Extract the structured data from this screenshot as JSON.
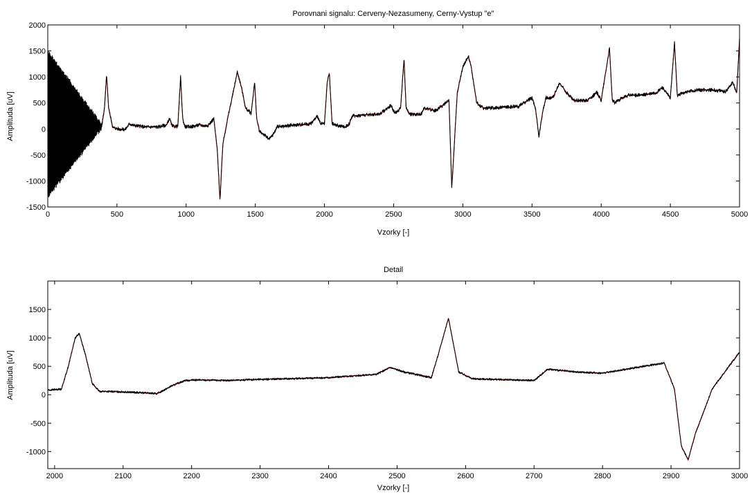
{
  "chart_data": [
    {
      "type": "line",
      "title": "Porovnani signalu: Cerveny-Nezasumeny, Cerny-Vystup \"e\"",
      "xlabel": "Vzorky [-]",
      "ylabel": "Amplituda [uV]",
      "xlim": [
        0,
        5000
      ],
      "ylim": [
        -1500,
        2000
      ],
      "xticks": [
        0,
        500,
        1000,
        1500,
        2000,
        2500,
        3000,
        3500,
        4000,
        4500,
        5000
      ],
      "yticks": [
        -1500,
        -1000,
        -500,
        0,
        500,
        1000,
        1500,
        2000
      ],
      "grid": false,
      "series": [
        {
          "color": "#cc0000",
          "x": [
            0,
            80,
            160,
            240,
            330,
            390,
            410,
            425,
            440,
            470,
            510,
            560,
            590,
            620,
            700,
            800,
            860,
            880,
            900,
            940,
            960,
            975,
            990,
            1010,
            1050,
            1100,
            1130,
            1160,
            1200,
            1225,
            1245,
            1265,
            1300,
            1340,
            1370,
            1400,
            1430,
            1470,
            1495,
            1510,
            1530,
            1560,
            1600,
            1630,
            1660,
            1700,
            1800,
            1900,
            1950,
            1970,
            2000,
            2020,
            2035,
            2055,
            2100,
            2150,
            2180,
            2200,
            2300,
            2400,
            2480,
            2490,
            2510,
            2550,
            2575,
            2590,
            2620,
            2700,
            2720,
            2800,
            2900,
            2920,
            2960,
            3000,
            3040,
            3060,
            3100,
            3150,
            3200,
            3300,
            3400,
            3500,
            3525,
            3550,
            3575,
            3600,
            3650,
            3700,
            3750,
            3800,
            3900,
            3970,
            4000,
            4060,
            4080,
            4100,
            4120,
            4200,
            4300,
            4400,
            4440,
            4500,
            4530,
            4550,
            4600,
            4700,
            4800,
            4900,
            4950,
            4980,
            5000
          ],
          "y": [
            100,
            90,
            80,
            70,
            60,
            50,
            400,
            1050,
            400,
            30,
            0,
            -10,
            100,
            70,
            40,
            40,
            80,
            200,
            50,
            50,
            1000,
            200,
            50,
            40,
            50,
            80,
            60,
            70,
            200,
            -400,
            -1370,
            -300,
            200,
            700,
            1100,
            800,
            400,
            300,
            900,
            200,
            -50,
            -100,
            -200,
            -100,
            50,
            50,
            80,
            100,
            250,
            100,
            100,
            900,
            1080,
            100,
            60,
            40,
            100,
            250,
            270,
            290,
            450,
            400,
            300,
            400,
            1350,
            400,
            280,
            290,
            400,
            350,
            540,
            -1130,
            700,
            1200,
            1400,
            1200,
            500,
            400,
            400,
            420,
            430,
            600,
            400,
            -150,
            300,
            600,
            600,
            880,
            700,
            550,
            550,
            700,
            550,
            1550,
            550,
            500,
            550,
            650,
            650,
            700,
            800,
            600,
            1650,
            650,
            700,
            750,
            750,
            720,
            900,
            700,
            1750
          ]
        },
        {
          "color": "#000000",
          "noise_amplitude": 1400,
          "noise_end": 400,
          "x": [
            0,
            80,
            160,
            240,
            330,
            390,
            410,
            425,
            440,
            470,
            510,
            560,
            590,
            620,
            700,
            800,
            860,
            880,
            900,
            940,
            960,
            975,
            990,
            1010,
            1050,
            1100,
            1130,
            1160,
            1200,
            1225,
            1245,
            1265,
            1300,
            1340,
            1370,
            1400,
            1430,
            1470,
            1495,
            1510,
            1530,
            1560,
            1600,
            1630,
            1660,
            1700,
            1800,
            1900,
            1950,
            1970,
            2000,
            2020,
            2035,
            2055,
            2100,
            2150,
            2180,
            2200,
            2300,
            2400,
            2480,
            2490,
            2510,
            2550,
            2575,
            2590,
            2620,
            2700,
            2720,
            2800,
            2900,
            2920,
            2960,
            3000,
            3040,
            3060,
            3100,
            3150,
            3200,
            3300,
            3400,
            3500,
            3525,
            3550,
            3575,
            3600,
            3650,
            3700,
            3750,
            3800,
            3900,
            3970,
            4000,
            4060,
            4080,
            4100,
            4120,
            4200,
            4300,
            4400,
            4440,
            4500,
            4530,
            4550,
            4600,
            4700,
            4800,
            4900,
            4950,
            4980,
            5000
          ],
          "y": [
            100,
            90,
            80,
            70,
            60,
            50,
            400,
            1050,
            400,
            30,
            0,
            -10,
            100,
            70,
            40,
            40,
            80,
            200,
            50,
            50,
            1000,
            200,
            50,
            40,
            50,
            80,
            60,
            70,
            200,
            -400,
            -1370,
            -300,
            200,
            700,
            1100,
            800,
            400,
            300,
            900,
            200,
            -50,
            -100,
            -200,
            -100,
            50,
            50,
            80,
            100,
            250,
            100,
            100,
            900,
            1080,
            100,
            60,
            40,
            100,
            250,
            270,
            290,
            450,
            400,
            300,
            400,
            1350,
            400,
            280,
            290,
            400,
            350,
            540,
            -1130,
            700,
            1200,
            1400,
            1200,
            500,
            400,
            400,
            420,
            430,
            600,
            400,
            -150,
            300,
            600,
            600,
            880,
            700,
            550,
            550,
            700,
            550,
            1550,
            550,
            500,
            550,
            650,
            650,
            700,
            800,
            600,
            1650,
            650,
            700,
            750,
            750,
            720,
            900,
            700,
            1750
          ]
        }
      ]
    },
    {
      "type": "line",
      "title": "Detail",
      "xlabel": "Vzorky [-]",
      "ylabel": "Amplituda [uV]",
      "xlim": [
        1990,
        3000
      ],
      "ylim": [
        -1300,
        2000
      ],
      "xticks": [
        2000,
        2100,
        2200,
        2300,
        2400,
        2500,
        2600,
        2700,
        2800,
        2900,
        3000
      ],
      "yticks": [
        -1000,
        -500,
        0,
        500,
        1000,
        1500
      ],
      "grid": false,
      "series": [
        {
          "color": "#cc0000",
          "x": [
            1990,
            2000,
            2010,
            2020,
            2030,
            2036,
            2045,
            2055,
            2065,
            2100,
            2150,
            2170,
            2190,
            2210,
            2250,
            2300,
            2400,
            2470,
            2490,
            2510,
            2550,
            2560,
            2575,
            2590,
            2610,
            2700,
            2720,
            2760,
            2800,
            2890,
            2905,
            2915,
            2925,
            2935,
            2960,
            3000
          ],
          "y": [
            80,
            90,
            100,
            500,
            1000,
            1080,
            700,
            200,
            60,
            50,
            20,
            150,
            250,
            260,
            250,
            270,
            300,
            360,
            480,
            400,
            300,
            700,
            1350,
            400,
            280,
            250,
            450,
            400,
            380,
            560,
            100,
            -900,
            -1150,
            -700,
            100,
            750
          ]
        },
        {
          "color": "#000000",
          "x": [
            1990,
            2000,
            2010,
            2020,
            2030,
            2036,
            2045,
            2055,
            2065,
            2100,
            2150,
            2170,
            2190,
            2210,
            2250,
            2300,
            2400,
            2470,
            2490,
            2510,
            2550,
            2560,
            2575,
            2590,
            2610,
            2700,
            2720,
            2760,
            2800,
            2890,
            2905,
            2915,
            2925,
            2935,
            2960,
            3000
          ],
          "y": [
            80,
            90,
            100,
            500,
            1000,
            1080,
            700,
            200,
            60,
            50,
            20,
            150,
            250,
            260,
            250,
            270,
            300,
            360,
            480,
            400,
            300,
            700,
            1350,
            400,
            280,
            250,
            450,
            400,
            380,
            560,
            100,
            -900,
            -1150,
            -700,
            100,
            750
          ]
        }
      ]
    }
  ]
}
